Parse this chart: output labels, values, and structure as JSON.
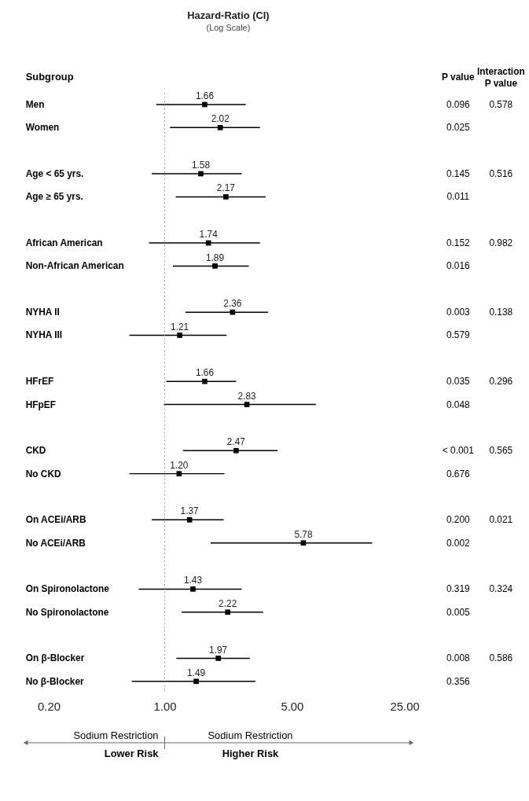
{
  "chart_data": {
    "type": "scatter",
    "title": "Hazard-Ratio (CI)",
    "subtitle": "(Log Scale)",
    "ylabel": "Subgroup",
    "categories": [
      "Men",
      "Women",
      null,
      "Age < 65 yrs.",
      "Age ≥ 65 yrs.",
      null,
      "African American",
      "Non-African American",
      null,
      "NYHA II",
      "NYHA III",
      null,
      "HFrEF",
      "HFpEF",
      null,
      "CKD",
      "No CKD",
      null,
      "On ACEi/ARB",
      "No ACEi/ARB",
      null,
      "On Spironolactone",
      "No Spironolactone",
      null,
      "On β-Blocker",
      "No β-Blocker"
    ],
    "values": [
      1.66,
      2.02,
      null,
      1.58,
      2.17,
      null,
      1.74,
      1.89,
      null,
      2.36,
      1.21,
      null,
      1.66,
      2.83,
      null,
      2.47,
      1.2,
      null,
      1.37,
      5.78,
      null,
      1.43,
      2.22,
      null,
      1.97,
      1.49
    ],
    "value_labels": [
      "1.66",
      "2.02",
      null,
      "1.58",
      "2.17",
      null,
      "1.74",
      "1.89",
      null,
      "2.36",
      "1.21",
      null,
      "1.66",
      "2.83",
      null,
      "2.47",
      "1.20",
      null,
      "1.37",
      "5.78",
      null,
      "1.43",
      "2.22",
      null,
      "1.97",
      "1.49"
    ],
    "errors": [
      [
        0.9,
        2.79
      ],
      [
        1.07,
        3.34
      ],
      null,
      [
        0.85,
        2.65
      ],
      [
        1.15,
        3.59
      ],
      null,
      [
        0.82,
        3.34
      ],
      [
        1.11,
        2.9
      ],
      null,
      [
        1.3,
        3.7
      ],
      [
        0.64,
        2.19
      ],
      null,
      [
        1.02,
        2.47
      ],
      [
        0.99,
        6.77
      ],
      null,
      [
        1.26,
        4.17
      ],
      [
        0.64,
        2.13
      ],
      null,
      [
        0.85,
        2.11
      ],
      [
        1.79,
        13.8
      ],
      null,
      [
        0.72,
        2.65
      ],
      [
        1.24,
        3.48
      ],
      null,
      [
        1.16,
        2.94
      ],
      [
        0.66,
        3.15
      ]
    ],
    "orientation": "horizontal",
    "log": "x",
    "xlim": [
      0.2,
      25
    ],
    "xticks": [
      {
        "value": 0.2,
        "label": "0.20"
      },
      {
        "value": 1,
        "label": "1.00"
      },
      {
        "value": 5,
        "label": "5.00"
      },
      {
        "value": 25,
        "label": "25.00"
      }
    ],
    "color": "#000000",
    "marker": "square",
    "grid": false,
    "ref_lines": [
      {
        "axis": "x",
        "value": 1,
        "label": null,
        "color": "#999999",
        "line_style": "dotted"
      }
    ],
    "annotations": [
      "P value",
      "Interaction P value",
      "Sodium Restriction",
      "Lower Risk",
      "Sodium Restriction",
      "Higher Risk",
      "0.096",
      "0.578",
      "0.025",
      "0.145",
      "0.516",
      "0.011",
      "0.152",
      "0.982",
      "0.016",
      "0.003",
      "0.138",
      "0.579",
      "0.035",
      "0.296",
      "0.048",
      "< 0.001",
      "0.565",
      "0.676",
      "0.200",
      "0.021",
      "0.002",
      "0.319",
      "0.324",
      "0.005",
      "0.008",
      "0.586",
      "0.356"
    ]
  }
}
